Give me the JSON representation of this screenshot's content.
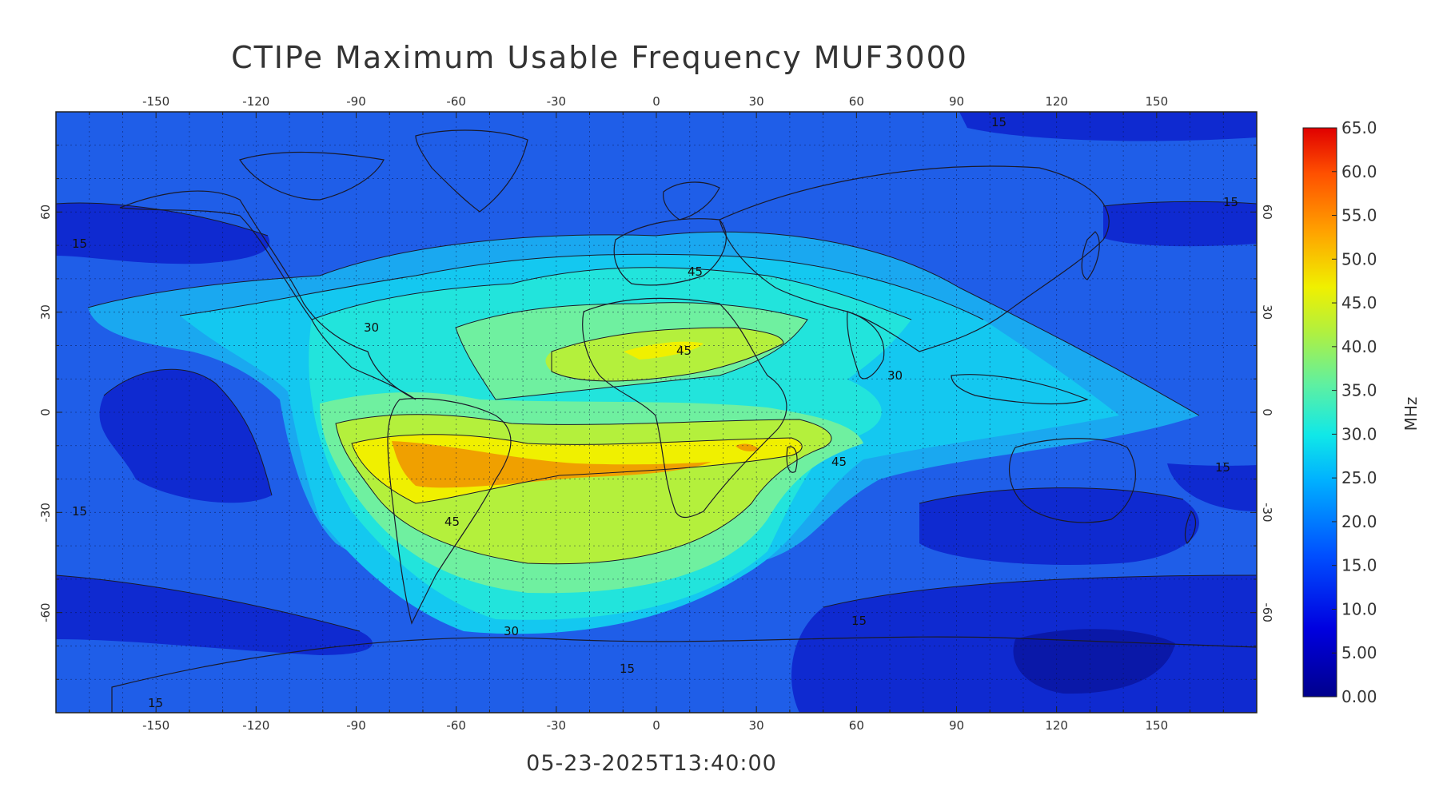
{
  "title": "CTIPe Maximum Usable Frequency MUF3000",
  "timestamp": "05-23-2025T13:40:00",
  "colorbar": {
    "unit": "MHz",
    "labels": [
      "0.00",
      "5.00",
      "10.0",
      "15.0",
      "20.0",
      "25.0",
      "30.0",
      "35.0",
      "40.0",
      "45.0",
      "50.0",
      "55.0",
      "60.0",
      "65.0"
    ],
    "range": [
      0,
      65
    ]
  },
  "axes": {
    "lon_ticks": [
      "-150",
      "-120",
      "-90",
      "-60",
      "-30",
      "0",
      "30",
      "60",
      "90",
      "120",
      "150"
    ],
    "lat_ticks": [
      "60",
      "30",
      "0",
      "-30",
      "-60"
    ],
    "lon_range": [
      -180,
      180
    ],
    "lat_range": [
      -90,
      90
    ]
  },
  "contour_labels": [
    "45",
    "45",
    "30",
    "30",
    "45",
    "45",
    "30",
    "15",
    "15",
    "15",
    "15",
    "15",
    "15",
    "15",
    "15"
  ],
  "colors": {
    "background_low": "#1f4fe0",
    "dark_blue": "#0a1ac0",
    "cyan_light": "#12c8f0",
    "cyan": "#22e8d8",
    "green": "#6ef09c",
    "yellow_green": "#b8f040",
    "yellow": "#f0f000",
    "orange": "#f0a000"
  }
}
